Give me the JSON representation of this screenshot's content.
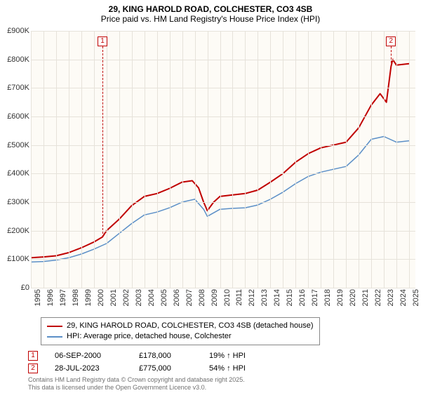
{
  "title": {
    "line1": "29, KING HAROLD ROAD, COLCHESTER, CO3 4SB",
    "line2": "Price paid vs. HM Land Registry's House Price Index (HPI)",
    "fontsize": 12
  },
  "chart": {
    "type": "line",
    "background_color": "#fdfbf6",
    "grid_color": "#e6e2da",
    "x": {
      "min": 1995,
      "max": 2025.5,
      "ticks": [
        1995,
        1996,
        1997,
        1998,
        1999,
        2000,
        2001,
        2002,
        2003,
        2004,
        2005,
        2006,
        2007,
        2008,
        2009,
        2010,
        2011,
        2012,
        2013,
        2014,
        2015,
        2016,
        2017,
        2018,
        2019,
        2020,
        2021,
        2022,
        2023,
        2024,
        2025
      ]
    },
    "y": {
      "min": 0,
      "max": 900000,
      "ticks": [
        0,
        100000,
        200000,
        300000,
        400000,
        500000,
        600000,
        700000,
        800000,
        900000
      ],
      "labels": [
        "£0",
        "£100K",
        "£200K",
        "£300K",
        "£400K",
        "£500K",
        "£600K",
        "£700K",
        "£800K",
        "£900K"
      ]
    },
    "series": [
      {
        "name": "price_paid",
        "label": "29, KING HAROLD ROAD, COLCHESTER, CO3 4SB (detached house)",
        "color": "#c00000",
        "width": 2,
        "points": [
          [
            1995,
            105000
          ],
          [
            1996,
            108000
          ],
          [
            1997,
            112000
          ],
          [
            1998,
            123000
          ],
          [
            1999,
            140000
          ],
          [
            2000,
            160000
          ],
          [
            2000.68,
            178000
          ],
          [
            2001,
            200000
          ],
          [
            2002,
            240000
          ],
          [
            2003,
            288000
          ],
          [
            2004,
            320000
          ],
          [
            2005,
            330000
          ],
          [
            2006,
            348000
          ],
          [
            2007,
            370000
          ],
          [
            2007.8,
            375000
          ],
          [
            2008.3,
            350000
          ],
          [
            2008.7,
            300000
          ],
          [
            2009,
            270000
          ],
          [
            2009.5,
            300000
          ],
          [
            2010,
            320000
          ],
          [
            2011,
            325000
          ],
          [
            2012,
            330000
          ],
          [
            2013,
            342000
          ],
          [
            2014,
            370000
          ],
          [
            2015,
            400000
          ],
          [
            2016,
            440000
          ],
          [
            2017,
            470000
          ],
          [
            2018,
            490000
          ],
          [
            2019,
            500000
          ],
          [
            2020,
            510000
          ],
          [
            2021,
            560000
          ],
          [
            2022,
            640000
          ],
          [
            2022.7,
            680000
          ],
          [
            2023.2,
            650000
          ],
          [
            2023.57,
            775000
          ],
          [
            2023.7,
            800000
          ],
          [
            2024,
            780000
          ],
          [
            2025,
            785000
          ]
        ]
      },
      {
        "name": "hpi",
        "label": "HPI: Average price, detached house, Colchester",
        "color": "#5b8fc7",
        "width": 1.5,
        "points": [
          [
            1995,
            90000
          ],
          [
            1996,
            92000
          ],
          [
            1997,
            97000
          ],
          [
            1998,
            105000
          ],
          [
            1999,
            118000
          ],
          [
            2000,
            135000
          ],
          [
            2001,
            155000
          ],
          [
            2002,
            190000
          ],
          [
            2003,
            225000
          ],
          [
            2004,
            255000
          ],
          [
            2005,
            265000
          ],
          [
            2006,
            280000
          ],
          [
            2007,
            300000
          ],
          [
            2008,
            310000
          ],
          [
            2008.7,
            275000
          ],
          [
            2009,
            250000
          ],
          [
            2010,
            275000
          ],
          [
            2011,
            278000
          ],
          [
            2012,
            280000
          ],
          [
            2013,
            290000
          ],
          [
            2014,
            310000
          ],
          [
            2015,
            335000
          ],
          [
            2016,
            365000
          ],
          [
            2017,
            390000
          ],
          [
            2018,
            405000
          ],
          [
            2019,
            415000
          ],
          [
            2020,
            425000
          ],
          [
            2021,
            465000
          ],
          [
            2022,
            520000
          ],
          [
            2023,
            530000
          ],
          [
            2024,
            510000
          ],
          [
            2025,
            515000
          ]
        ]
      }
    ],
    "markers": [
      {
        "id": "1",
        "x": 2000.68,
        "box_y_top": true
      },
      {
        "id": "2",
        "x": 2023.57,
        "box_y_top": true
      }
    ]
  },
  "legend": {
    "s1": "29, KING HAROLD ROAD, COLCHESTER, CO3 4SB (detached house)",
    "s2": "HPI: Average price, detached house, Colchester"
  },
  "sales": [
    {
      "id": "1",
      "date": "06-SEP-2000",
      "price": "£178,000",
      "pct": "19% ↑ HPI"
    },
    {
      "id": "2",
      "date": "28-JUL-2023",
      "price": "£775,000",
      "pct": "54% ↑ HPI"
    }
  ],
  "footer": {
    "l1": "Contains HM Land Registry data © Crown copyright and database right 2025.",
    "l2": "This data is licensed under the Open Government Licence v3.0."
  }
}
